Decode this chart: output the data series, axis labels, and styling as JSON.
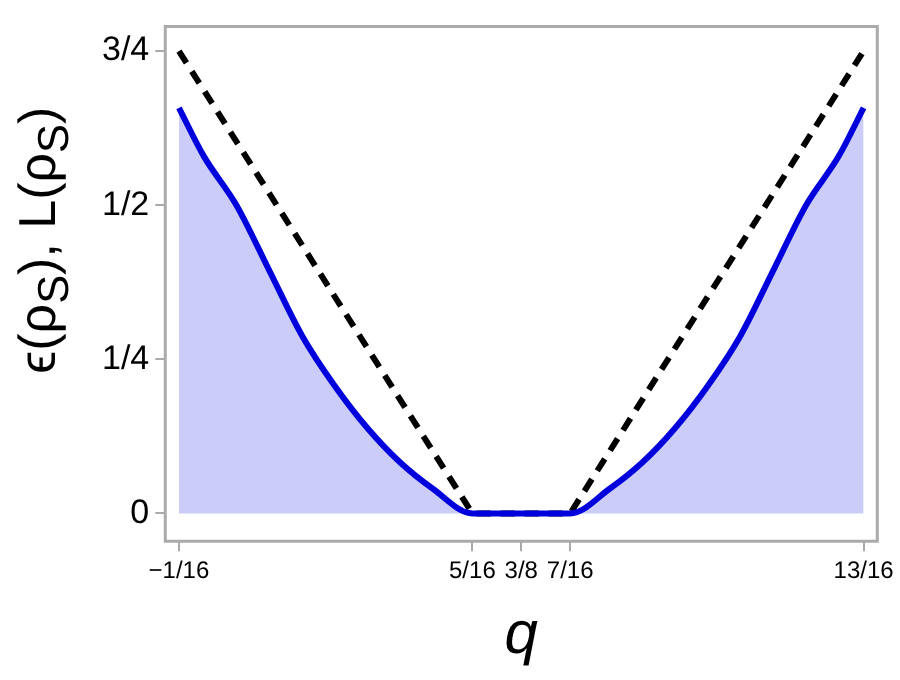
{
  "chart_data": {
    "type": "line",
    "xlabel": "q",
    "ylabel": "ϵ(ρ$_{S}$), L(ρ$_{S}$)",
    "xlim": [
      -0.08,
      0.83
    ],
    "ylim": [
      -0.045,
      0.79
    ],
    "xticks": [
      {
        "value": -0.0625,
        "label": "−1/16"
      },
      {
        "value": 0.3125,
        "label": "5/16"
      },
      {
        "value": 0.375,
        "label": "3/8"
      },
      {
        "value": 0.4375,
        "label": "7/16"
      },
      {
        "value": 0.8125,
        "label": "13/16"
      }
    ],
    "yticks": [
      0,
      {
        "value": 0.25,
        "label": "1/4"
      },
      {
        "value": 0.5,
        "label": "1/2"
      },
      {
        "value": 0.75,
        "label": "3/4"
      }
    ],
    "grid": false,
    "legend": false,
    "series": [
      {
        "type": "area",
        "color": "#0000dd",
        "line_style": "solid",
        "x": [
          -0.0625,
          -0.031,
          0.011,
          0.053,
          0.095,
          0.136,
          0.178,
          0.22,
          0.262,
          0.3125,
          0.4375,
          0.488,
          0.53,
          0.572,
          0.614,
          0.655,
          0.697,
          0.739,
          0.781,
          0.8125
        ],
        "values": [
          0.658,
          0.58,
          0.5,
          0.394,
          0.288,
          0.208,
          0.139,
          0.083,
          0.04,
          0,
          0,
          0.04,
          0.083,
          0.139,
          0.208,
          0.288,
          0.394,
          0.5,
          0.58,
          0.658
        ]
      },
      {
        "type": "line",
        "color": "#000000",
        "line_style": "dashed",
        "x": [
          -0.0625,
          0.3125,
          0.4375,
          0.8125
        ],
        "values": [
          0.75,
          0,
          0,
          0.75
        ]
      }
    ]
  }
}
